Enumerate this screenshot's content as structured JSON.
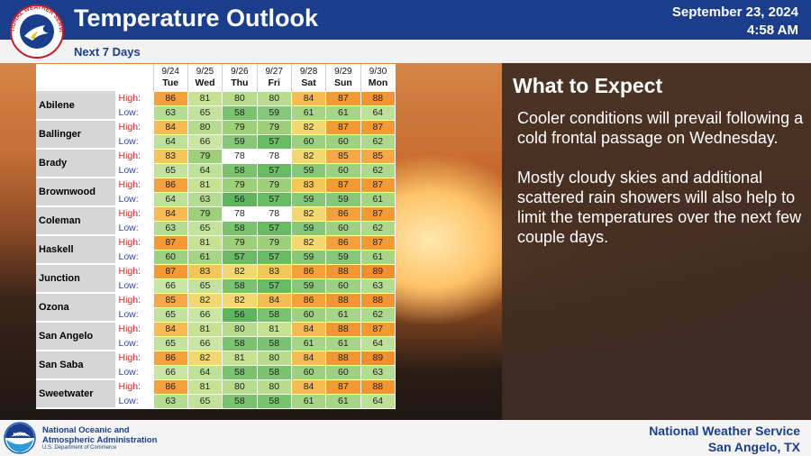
{
  "header": {
    "title": "Temperature Outlook",
    "subtitle": "Next 7 Days",
    "date": "September 23, 2024",
    "time": "4:58 AM",
    "logo_text": "NATIONAL WEATHER SERVICE"
  },
  "colors": {
    "c79": "#9ed07a",
    "c80": "#b8dc8e",
    "c81": "#c8e293",
    "c82": "#f2d774",
    "c83": "#f3c65c",
    "c84": "#f6bb57",
    "c85": "#f6a84a",
    "c86": "#f5a03e",
    "c87": "#f29b36",
    "c88": "#f29635",
    "c89": "#f08f30",
    "c56": "#5fb55d",
    "c57": "#69ba62",
    "c58": "#79c36f",
    "c59": "#86c878",
    "c60": "#9ed17f",
    "c61": "#a6d585",
    "c62": "#add98c",
    "c63": "#b5dd91",
    "c64": "#bde197",
    "c65": "#c3e39d",
    "c66": "#c9e6a2"
  },
  "table": {
    "dates": [
      "9/24",
      "9/25",
      "9/26",
      "9/27",
      "9/28",
      "9/29",
      "9/30"
    ],
    "days": [
      "Tue",
      "Wed",
      "Thu",
      "Fri",
      "Sat",
      "Sun",
      "Mon"
    ],
    "high_label": "High:",
    "low_label": "Low:",
    "cities": [
      {
        "name": "Abilene",
        "high": [
          86,
          81,
          80,
          80,
          84,
          87,
          88
        ],
        "low": [
          63,
          65,
          58,
          59,
          61,
          61,
          64
        ]
      },
      {
        "name": "Ballinger",
        "high": [
          84,
          80,
          79,
          79,
          82,
          87,
          87
        ],
        "low": [
          64,
          66,
          59,
          57,
          60,
          60,
          62
        ]
      },
      {
        "name": "Brady",
        "high": [
          83,
          79,
          78,
          78,
          82,
          85,
          85
        ],
        "low": [
          65,
          64,
          58,
          57,
          59,
          60,
          62
        ]
      },
      {
        "name": "Brownwood",
        "high": [
          86,
          81,
          79,
          79,
          83,
          87,
          87
        ],
        "low": [
          64,
          63,
          56,
          57,
          59,
          59,
          61
        ]
      },
      {
        "name": "Coleman",
        "high": [
          84,
          79,
          78,
          78,
          82,
          86,
          87
        ],
        "low": [
          63,
          65,
          58,
          57,
          59,
          60,
          62
        ]
      },
      {
        "name": "Haskell",
        "high": [
          87,
          81,
          79,
          79,
          82,
          86,
          87
        ],
        "low": [
          60,
          61,
          57,
          57,
          59,
          59,
          61
        ]
      },
      {
        "name": "Junction",
        "high": [
          87,
          83,
          82,
          83,
          86,
          88,
          89
        ],
        "low": [
          66,
          65,
          58,
          57,
          59,
          60,
          63
        ]
      },
      {
        "name": "Ozona",
        "high": [
          85,
          82,
          82,
          84,
          86,
          88,
          88
        ],
        "low": [
          65,
          66,
          56,
          58,
          60,
          61,
          62
        ]
      },
      {
        "name": "San Angelo",
        "high": [
          84,
          81,
          80,
          81,
          84,
          88,
          87
        ],
        "low": [
          65,
          66,
          58,
          58,
          61,
          61,
          64
        ]
      },
      {
        "name": "San Saba",
        "high": [
          86,
          82,
          81,
          80,
          84,
          88,
          89
        ],
        "low": [
          66,
          64,
          58,
          58,
          60,
          60,
          63
        ]
      },
      {
        "name": "Sweetwater",
        "high": [
          86,
          81,
          80,
          80,
          84,
          87,
          88
        ],
        "low": [
          63,
          65,
          58,
          58,
          61,
          61,
          64
        ]
      }
    ]
  },
  "panel": {
    "title": "What to Expect",
    "paragraphs": [
      "Cooler conditions will prevail following a cold frontal passage on Wednesday.",
      "Mostly cloudy skies and additional scattered rain showers will also help to limit the temperatures over the next few couple days."
    ]
  },
  "footer": {
    "noaa_line1": "National Oceanic and",
    "noaa_line2": "Atmospheric Administration",
    "noaa_dept": "U.S. Department of Commerce",
    "noaa_logo_text": "NOAA",
    "nws_line1": "National Weather Service",
    "nws_line2": "San Angelo, TX"
  }
}
